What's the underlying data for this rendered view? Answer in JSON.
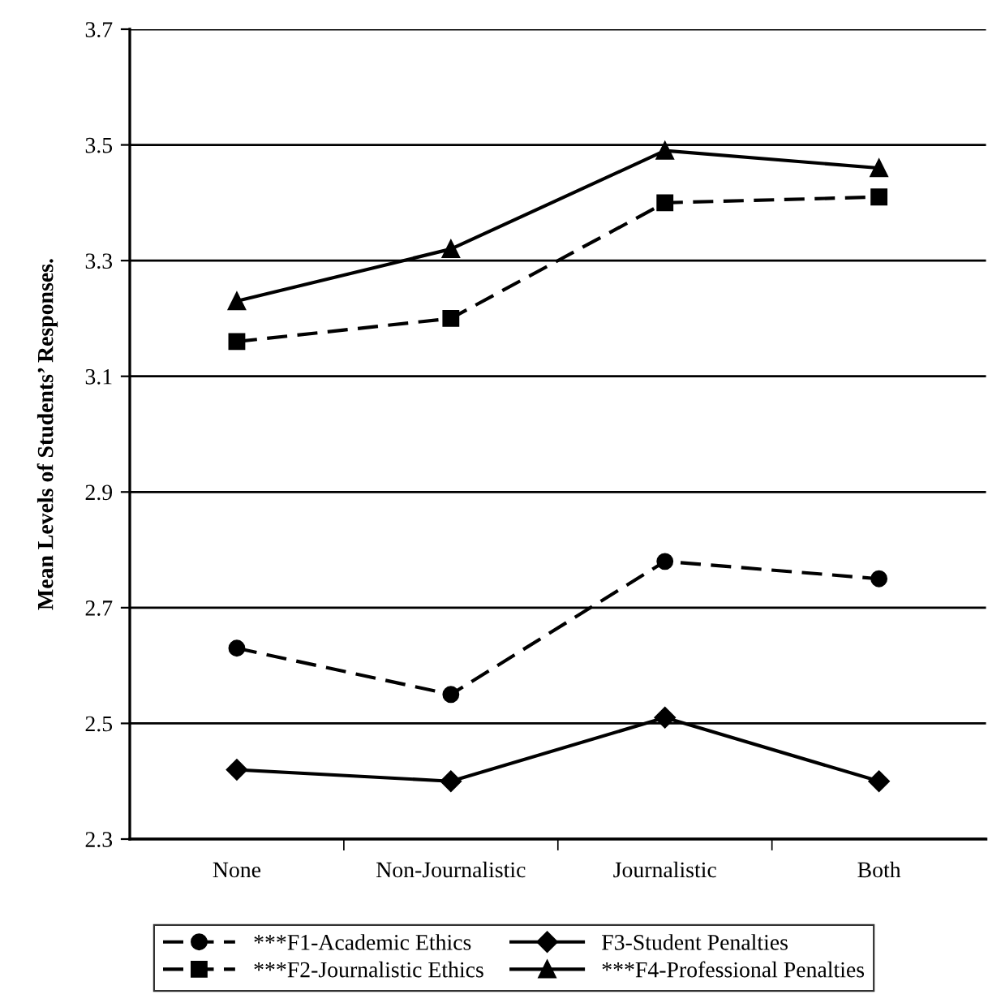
{
  "chart_data": {
    "type": "line",
    "ylabel": "Mean Levels of Students’ Responses.",
    "categories": [
      "None",
      "Non-Journalistic",
      "Journalistic",
      "Both"
    ],
    "ylim": [
      2.3,
      3.7
    ],
    "yticks": [
      2.3,
      2.5,
      2.7,
      2.9,
      3.1,
      3.3,
      3.5,
      3.7
    ],
    "grid": "y",
    "legend": "bottom",
    "series": [
      {
        "name": "***F1-Academic Ethics",
        "color": "#000000",
        "marker": "circle",
        "line_style": "dashed",
        "values": [
          2.63,
          2.55,
          2.78,
          2.75
        ]
      },
      {
        "name": "***F2-Journalistic Ethics",
        "color": "#000000",
        "marker": "square",
        "line_style": "dashed",
        "values": [
          3.16,
          3.2,
          3.4,
          3.41
        ]
      },
      {
        "name": "F3-Student Penalties",
        "color": "#000000",
        "marker": "diamond",
        "line_style": "solid",
        "values": [
          2.42,
          2.4,
          2.51,
          2.4
        ]
      },
      {
        "name": "***F4-Professional Penalties",
        "color": "#000000",
        "marker": "triangle",
        "line_style": "solid",
        "values": [
          3.23,
          3.32,
          3.49,
          3.46
        ]
      }
    ]
  }
}
